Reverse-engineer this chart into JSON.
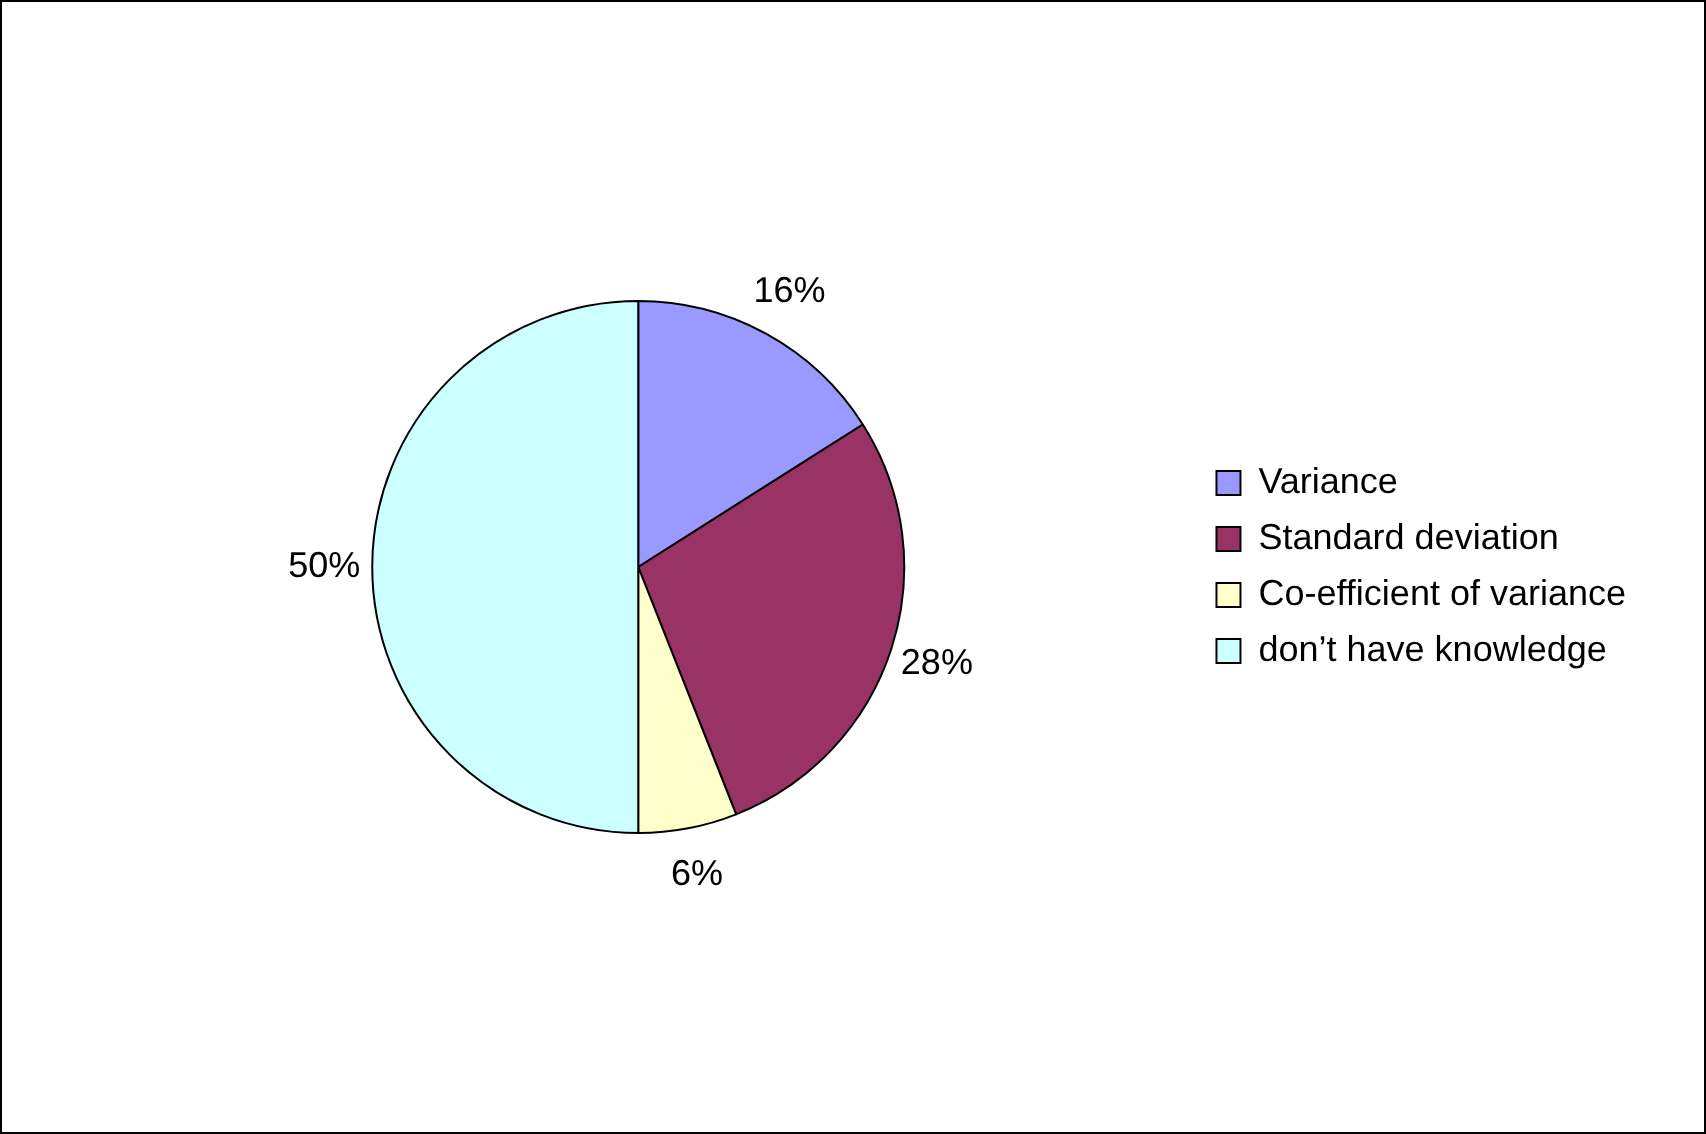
{
  "chart_data": {
    "type": "pie",
    "categories": [
      "Variance",
      "Standard deviation",
      "Co-efficient of variance",
      "don’t have knowledge"
    ],
    "values": [
      16,
      28,
      6,
      50
    ],
    "value_labels": [
      "16%",
      "28%",
      "6%",
      "50%"
    ],
    "colors": [
      "#9999ff",
      "#993366",
      "#ffffcc",
      "#ccffff"
    ],
    "legend": "right"
  }
}
